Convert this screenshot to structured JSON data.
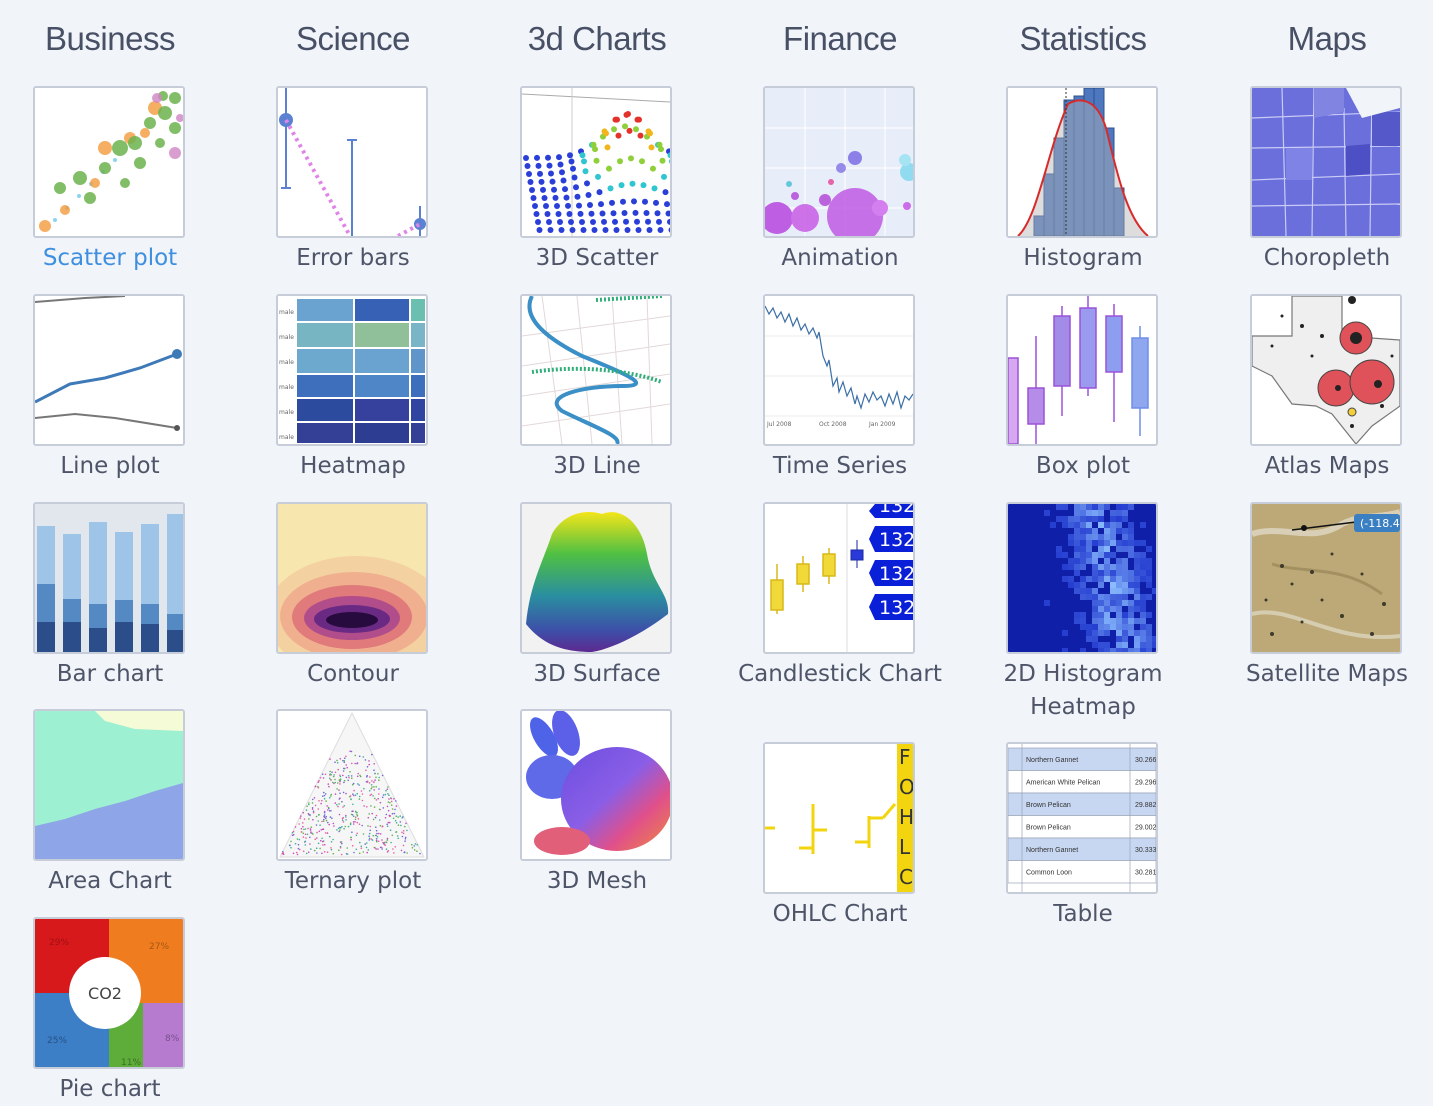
{
  "categories": [
    {
      "title": "Business",
      "items": [
        "Scatter plot",
        "Line plot",
        "Bar chart",
        "Area Chart",
        "Pie chart"
      ]
    },
    {
      "title": "Science",
      "items": [
        "Error bars",
        "Heatmap",
        "Contour",
        "Ternary plot"
      ]
    },
    {
      "title": "3d Charts",
      "items": [
        "3D Scatter",
        "3D Line",
        "3D Surface",
        "3D Mesh"
      ]
    },
    {
      "title": "Finance",
      "items": [
        "Animation",
        "Time Series",
        "Candlestick Chart",
        "OHLC Chart"
      ]
    },
    {
      "title": "Statistics",
      "items": [
        "Histogram",
        "Box plot",
        "2D Histogram Heatmap",
        "Table"
      ]
    },
    {
      "title": "Maps",
      "items": [
        "Choropleth",
        "Atlas Maps",
        "Satellite Maps"
      ]
    }
  ],
  "active_item": "Scatter plot",
  "thumb_text": {
    "heatmap_row_label": "male",
    "timeseries_ticks": [
      "Jul 2008",
      "Oct 2008",
      "Jan 2009"
    ],
    "candlestick_values": [
      "132",
      "132",
      "132",
      "132"
    ],
    "ohlc_letters": [
      "F",
      "O",
      "H",
      "L",
      "C"
    ],
    "satellite_coord": "(-118.4",
    "pie_center": "CO2",
    "pie_pcts": [
      "29%",
      "27%",
      "25%",
      "11%",
      "8%"
    ],
    "table_rows": [
      {
        "name": "Northern Gannet",
        "value": "30.266"
      },
      {
        "name": "American White Pelican",
        "value": "29.296"
      },
      {
        "name": "Brown Pelican",
        "value": "29.882"
      },
      {
        "name": "Brown Pelican",
        "value": "29.002"
      },
      {
        "name": "Northern Gannet",
        "value": "30.333"
      },
      {
        "name": "Common Loon",
        "value": "30.281"
      }
    ]
  },
  "colors": {
    "title": "#485066",
    "label": "#4e5568",
    "active_label": "#3f8fe0",
    "background": "#f1f4f9",
    "thumb_border": "#c6ccd8"
  }
}
